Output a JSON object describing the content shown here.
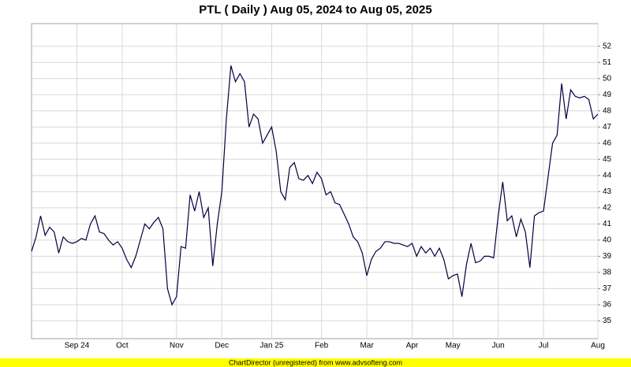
{
  "chart_data": {
    "type": "line",
    "title": "PTL ( Daily ) Aug 05, 2024 to Aug 05, 2025",
    "footer": "ChartDirector (unregistered) from www.advsofteng.com",
    "color": "#000040",
    "grid": true,
    "ylim": [
      33.9,
      53.4
    ],
    "yticks": [
      35,
      36,
      37,
      38,
      39,
      40,
      41,
      42,
      43,
      44,
      45,
      46,
      47,
      48,
      49,
      50,
      51,
      52
    ],
    "categories": [
      null,
      null,
      null,
      null,
      null,
      null,
      null,
      null,
      null,
      null,
      "Sep 24",
      null,
      null,
      null,
      null,
      null,
      null,
      null,
      null,
      null,
      "Oct",
      null,
      null,
      null,
      null,
      null,
      null,
      null,
      null,
      null,
      null,
      null,
      "Nov",
      null,
      null,
      null,
      null,
      null,
      null,
      null,
      null,
      null,
      "Dec",
      null,
      null,
      null,
      null,
      null,
      null,
      null,
      null,
      null,
      null,
      "Jan 25",
      null,
      null,
      null,
      null,
      null,
      null,
      null,
      null,
      null,
      null,
      "Feb",
      null,
      null,
      null,
      null,
      null,
      null,
      null,
      null,
      null,
      "Mar",
      null,
      null,
      null,
      null,
      null,
      null,
      null,
      null,
      null,
      "Apr",
      null,
      null,
      null,
      null,
      null,
      null,
      null,
      null,
      "May",
      null,
      null,
      null,
      null,
      null,
      null,
      null,
      null,
      null,
      "Jun",
      null,
      null,
      null,
      null,
      null,
      null,
      null,
      null,
      null,
      "Jul",
      null,
      null,
      null,
      null,
      null,
      null,
      null,
      null,
      null,
      null,
      null,
      "Aug"
    ],
    "values": [
      39.3,
      40.2,
      41.5,
      40.3,
      40.8,
      40.5,
      39.2,
      40.2,
      39.9,
      39.8,
      39.9,
      40.1,
      40.0,
      41.0,
      41.5,
      40.5,
      40.4,
      40.0,
      39.7,
      39.9,
      39.5,
      38.8,
      38.3,
      39.0,
      40.0,
      41.0,
      40.7,
      41.1,
      41.4,
      40.7,
      37.0,
      36.0,
      36.5,
      39.6,
      39.5,
      42.8,
      41.8,
      43.0,
      41.4,
      42.0,
      38.4,
      41.0,
      43.0,
      47.5,
      50.8,
      49.8,
      50.3,
      49.8,
      47.0,
      47.8,
      47.5,
      46.0,
      46.5,
      47.0,
      45.5,
      43.0,
      42.5,
      44.5,
      44.8,
      43.8,
      43.7,
      44.0,
      43.5,
      44.2,
      43.8,
      42.8,
      43.0,
      42.3,
      42.2,
      41.6,
      41.0,
      40.2,
      39.9,
      39.2,
      37.8,
      38.8,
      39.3,
      39.5,
      39.9,
      39.9,
      39.8,
      39.8,
      39.7,
      39.6,
      39.8,
      39.0,
      39.6,
      39.2,
      39.5,
      39.0,
      39.5,
      38.8,
      37.6,
      37.8,
      37.9,
      36.5,
      38.5,
      39.8,
      38.6,
      38.7,
      39.0,
      39.0,
      38.9,
      41.5,
      43.6,
      41.2,
      41.5,
      40.2,
      41.3,
      40.5,
      38.3,
      41.5,
      41.7,
      41.8,
      43.9,
      46.0,
      46.5,
      49.7,
      47.5,
      49.3,
      48.9,
      48.8,
      48.9,
      48.7,
      47.5,
      47.8
    ]
  }
}
